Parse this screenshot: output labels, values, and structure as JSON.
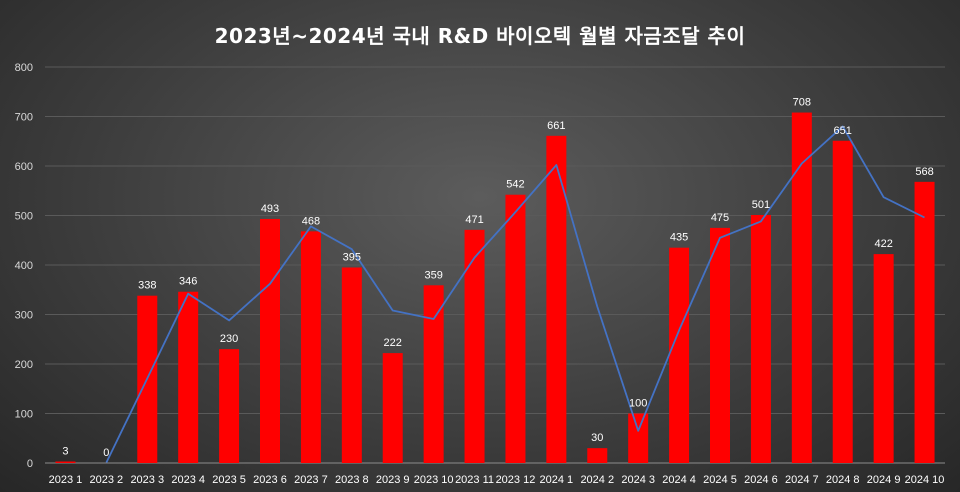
{
  "chart_data": {
    "type": "bar",
    "title": "2023년~2024년 국내 R&D 바이오텍 월별 자금조달 추이",
    "categories": [
      "2023 1",
      "2023 2",
      "2023 3",
      "2023 4",
      "2023 5",
      "2023 6",
      "2023 7",
      "2023 8",
      "2023 9",
      "2023 10",
      "2023 11",
      "2023 12",
      "2024 1",
      "2024 2",
      "2024 3",
      "2024 4",
      "2024 5",
      "2024 6",
      "2024 7",
      "2024 8",
      "2024 9",
      "2024 10"
    ],
    "series": [
      {
        "type": "bar",
        "values": [
          3,
          0,
          338,
          346,
          230,
          493,
          468,
          395,
          222,
          359,
          471,
          542,
          661,
          30,
          100,
          435,
          475,
          501,
          708,
          651,
          422,
          568
        ],
        "color": "#ff0000"
      },
      {
        "type": "line",
        "values": [
          null,
          1,
          171,
          342,
          288,
          362,
          478,
          432,
          308,
          291,
          415,
          507,
          602,
          316,
          65,
          268,
          455,
          488,
          605,
          680,
          537,
          496
        ],
        "color": "#4472c4"
      }
    ],
    "yticks": [
      0,
      100,
      200,
      300,
      400,
      500,
      600,
      700,
      800
    ],
    "ylim": [
      0,
      800
    ],
    "grid": true,
    "legend": "none",
    "background_color": "#3e3e3e",
    "text_color": "#ffffff"
  }
}
